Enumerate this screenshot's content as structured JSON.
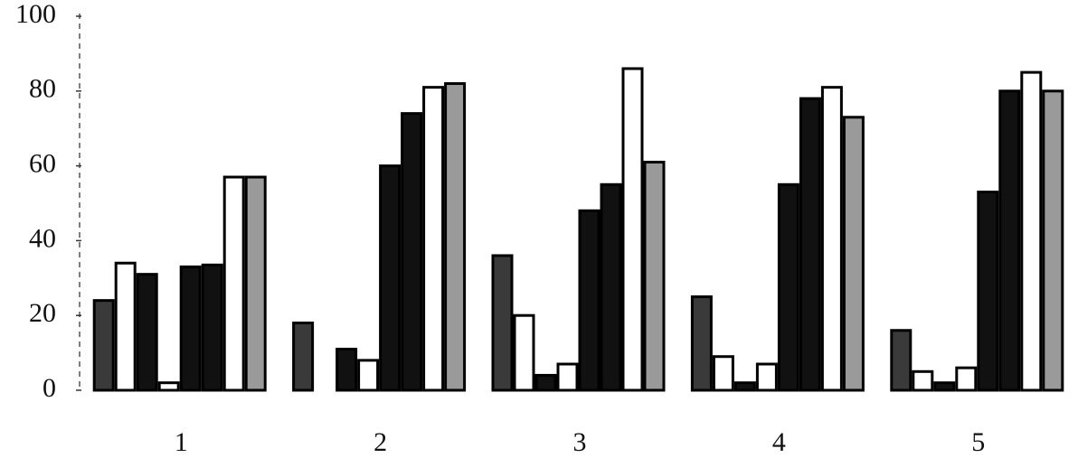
{
  "chart_data": {
    "type": "bar",
    "categories": [
      "1",
      "2",
      "3",
      "4",
      "5"
    ],
    "series": [
      {
        "color": "#3a3a3a",
        "values": [
          24,
          18,
          36,
          25,
          16
        ]
      },
      {
        "color": "#ffffff",
        "values": [
          34,
          0,
          20,
          9,
          5
        ]
      },
      {
        "color": "#111111",
        "values": [
          31,
          11,
          4,
          2,
          2
        ]
      },
      {
        "color": "#ffffff",
        "values": [
          2,
          8,
          7,
          7,
          6
        ]
      },
      {
        "color": "#111111",
        "values": [
          33,
          60,
          48,
          55,
          53
        ]
      },
      {
        "color": "#111111",
        "values": [
          33.5,
          74,
          55,
          78,
          80
        ]
      },
      {
        "color": "#ffffff",
        "values": [
          57,
          81,
          86,
          81,
          85
        ]
      },
      {
        "color": "#9a9a9a",
        "values": [
          57,
          82,
          61,
          73,
          80
        ]
      }
    ],
    "ylim": [
      0,
      100
    ],
    "yticks": [
      0,
      20,
      40,
      60,
      80,
      100
    ]
  }
}
